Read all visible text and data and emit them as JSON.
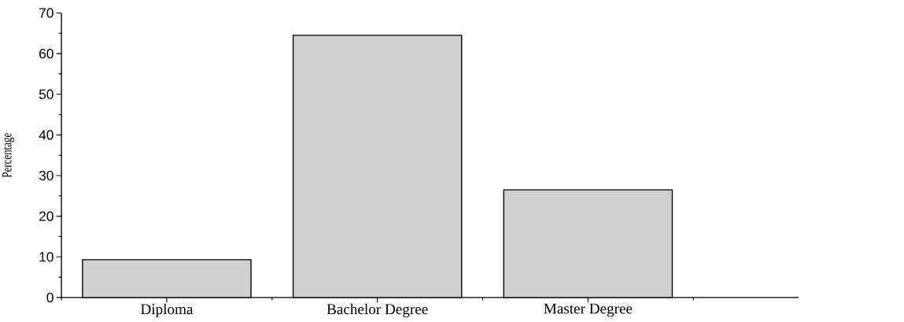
{
  "chart_data": {
    "type": "bar",
    "ylabel": "Percentage",
    "categories": [
      "Diploma",
      "Bachelor Degree",
      "Master Degree"
    ],
    "values": [
      9.3,
      64.5,
      26.5
    ],
    "color": "#d0d0d0",
    "ylim": [
      0,
      70
    ],
    "yticks": [
      0,
      10,
      20,
      30,
      40,
      50,
      60,
      70
    ],
    "grid": false
  }
}
